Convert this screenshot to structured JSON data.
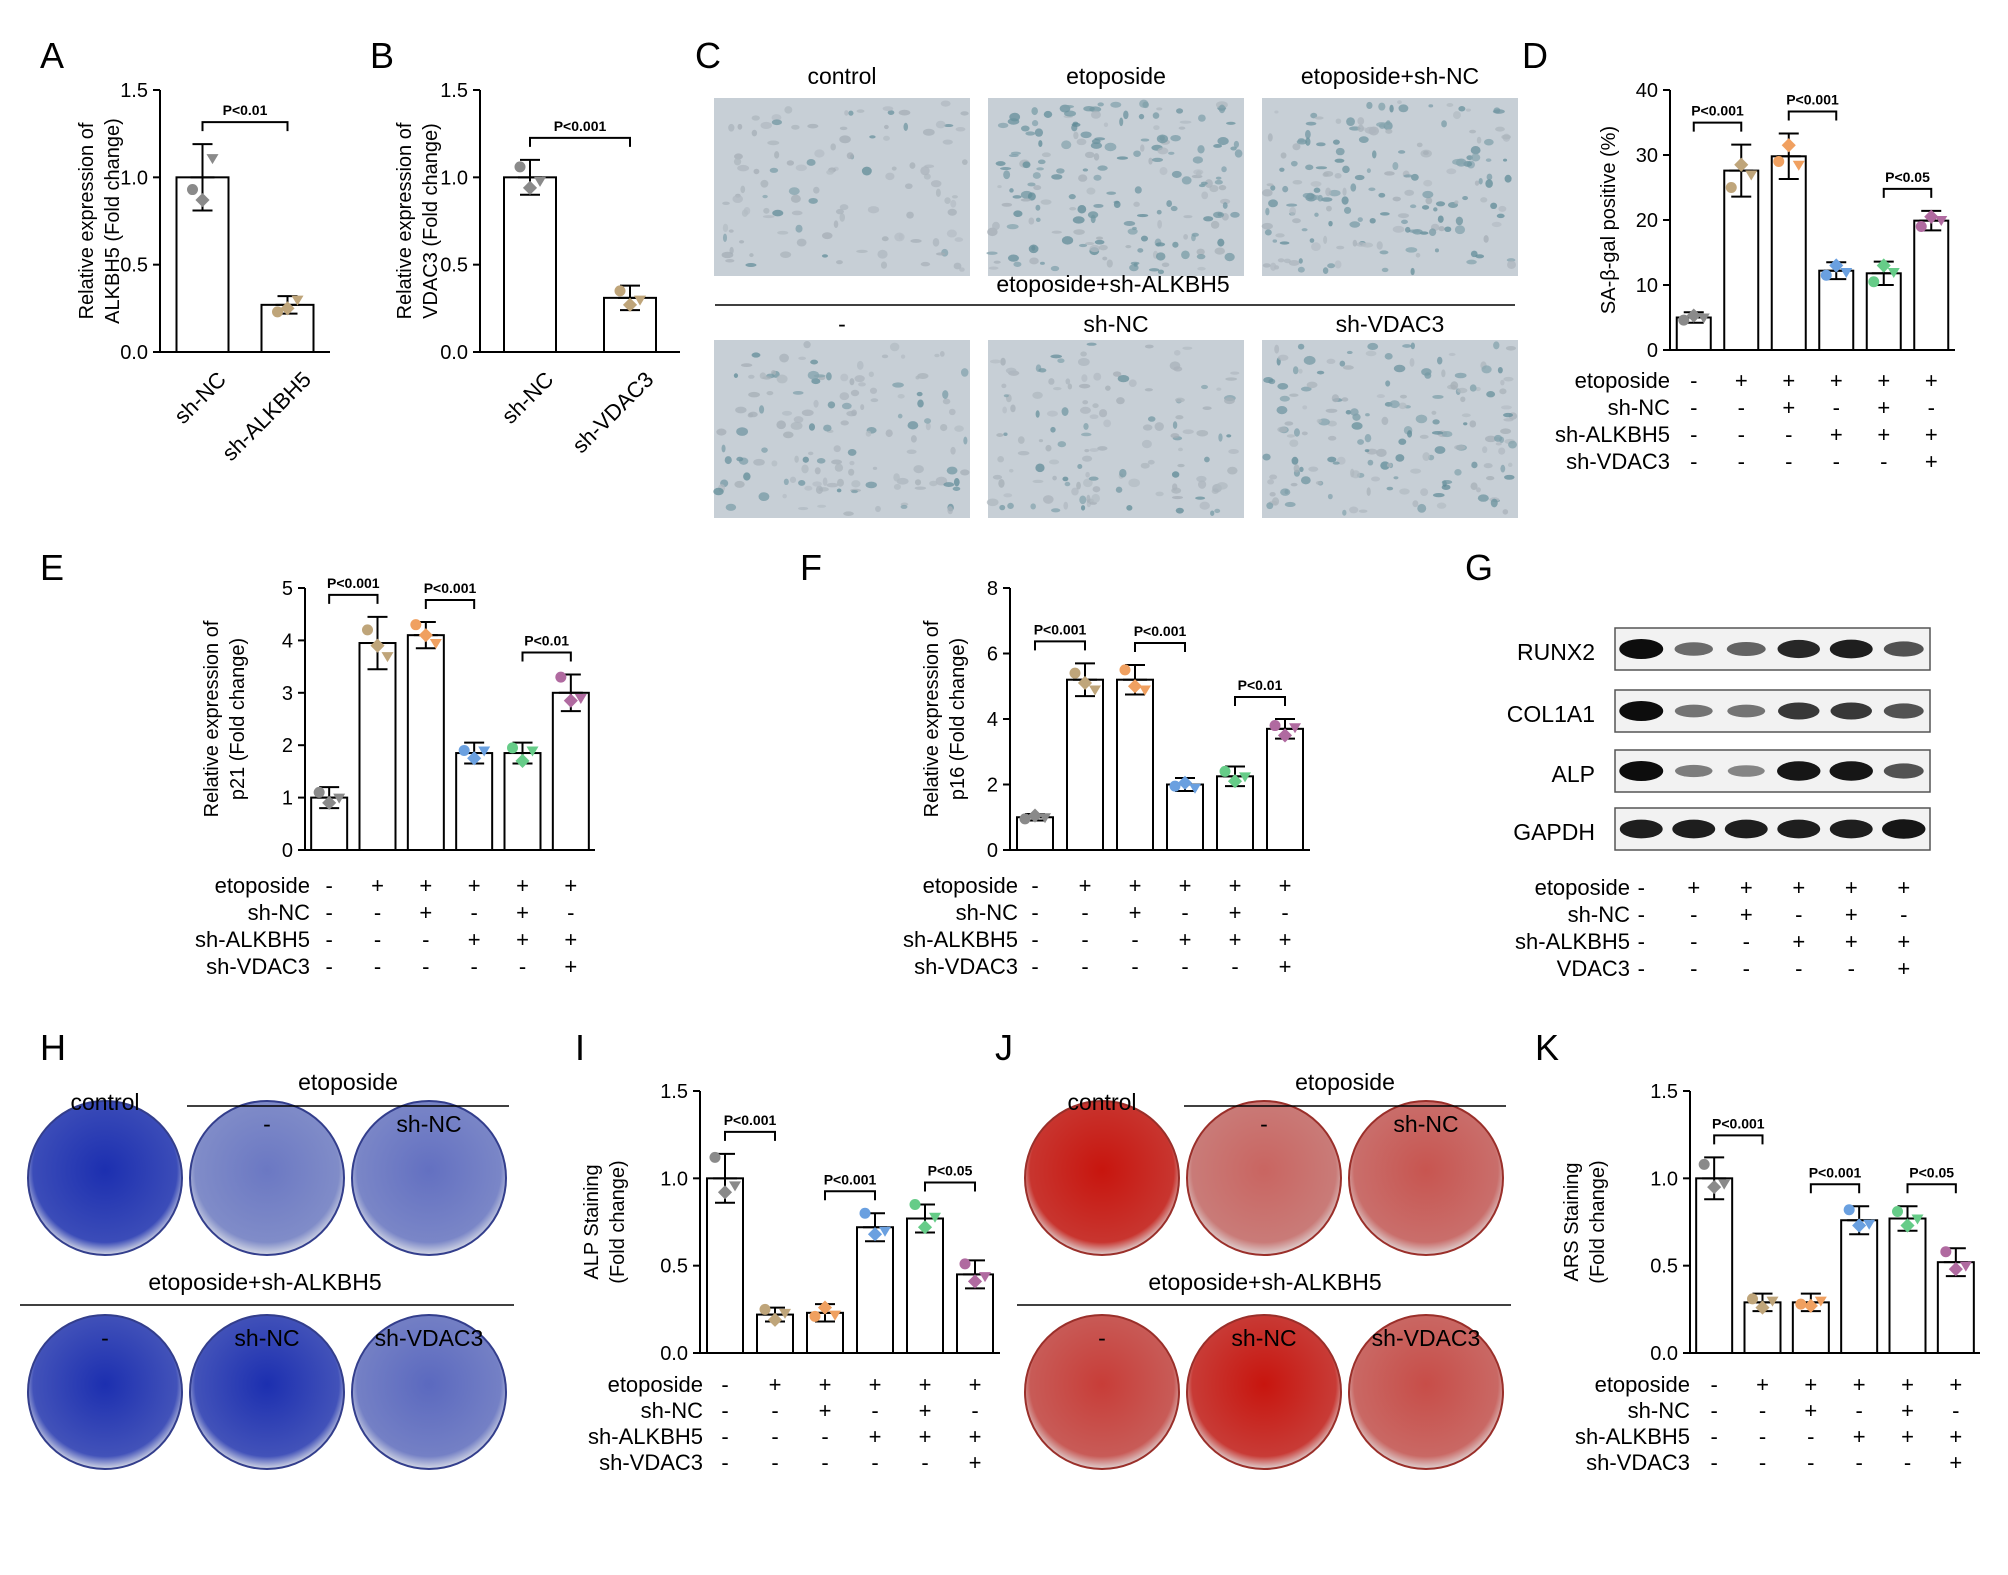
{
  "panel_letters": [
    "A",
    "B",
    "C",
    "D",
    "E",
    "F",
    "G",
    "H",
    "I",
    "J",
    "K"
  ],
  "chart_data": [
    {
      "panel": "A",
      "type": "bar",
      "categories": [
        "sh-NC",
        "sh-ALKBH5"
      ],
      "values": [
        1.0,
        0.27
      ],
      "errors": [
        0.19,
        0.05
      ],
      "points": [
        [
          0.93,
          0.87,
          1.11
        ],
        [
          0.23,
          0.25,
          0.3
        ]
      ],
      "point_colors": [
        "#8a8a8a",
        "#bfa57a"
      ],
      "ylabel": [
        "Relative expression of",
        "ALKBH5 (Fold change)"
      ],
      "ylim": [
        0,
        1.5
      ],
      "yticks": [
        "0.0",
        "0.5",
        "1.0",
        "1.5"
      ],
      "comparisons": [
        {
          "from": 0,
          "to": 1,
          "label": "P<0.01"
        }
      ]
    },
    {
      "panel": "B",
      "type": "bar",
      "categories": [
        "sh-NC",
        "sh-VDAC3"
      ],
      "values": [
        1.0,
        0.31
      ],
      "errors": [
        0.1,
        0.07
      ],
      "points": [
        [
          1.06,
          0.94,
          0.98
        ],
        [
          0.35,
          0.27,
          0.3
        ]
      ],
      "point_colors": [
        "#8a8a8a",
        "#bfa57a"
      ],
      "ylabel": [
        "Relative expression of",
        "VDAC3 (Fold change)"
      ],
      "ylim": [
        0,
        1.5
      ],
      "yticks": [
        "0.0",
        "0.5",
        "1.0",
        "1.5"
      ],
      "comparisons": [
        {
          "from": 0,
          "to": 1,
          "label": "P<0.001"
        }
      ]
    },
    {
      "panel": "D",
      "type": "bar",
      "values": [
        5.0,
        27.6,
        29.8,
        12.2,
        11.8,
        19.9
      ],
      "errors": [
        0.8,
        4.0,
        3.5,
        1.3,
        1.8,
        1.5
      ],
      "points": [
        [
          4.6,
          5.3,
          5.0
        ],
        [
          25.0,
          28.5,
          27.0
        ],
        [
          29.0,
          31.5,
          28.5
        ],
        [
          11.5,
          13.0,
          12.0
        ],
        [
          10.5,
          13.0,
          12.0
        ],
        [
          19.0,
          20.5,
          20.0
        ]
      ],
      "point_colors": [
        "#8a8a8a",
        "#bfa57a",
        "#f0a060",
        "#6aa0e0",
        "#66cc88",
        "#b06aa0"
      ],
      "ylabel": [
        "SA-β-gal positive (%)"
      ],
      "ylim": [
        0,
        40
      ],
      "yticks": [
        "0",
        "10",
        "20",
        "30",
        "40"
      ],
      "comparisons": [
        {
          "from": 0,
          "to": 1,
          "label": "P<0.001"
        },
        {
          "from": 2,
          "to": 3,
          "label": "P<0.001"
        },
        {
          "from": 4,
          "to": 5,
          "label": "P<0.05"
        }
      ],
      "conditions": [
        {
          "name": "etoposide",
          "signs": [
            "-",
            "+",
            "+",
            "+",
            "+",
            "+"
          ]
        },
        {
          "name": "sh-NC",
          "signs": [
            "-",
            "-",
            "+",
            "-",
            "+",
            "-"
          ]
        },
        {
          "name": "sh-ALKBH5",
          "signs": [
            "-",
            "-",
            "-",
            "+",
            "+",
            "+"
          ]
        },
        {
          "name": "sh-VDAC3",
          "signs": [
            "-",
            "-",
            "-",
            "-",
            "-",
            "+"
          ]
        }
      ]
    },
    {
      "panel": "E",
      "type": "bar",
      "values": [
        1.0,
        3.95,
        4.1,
        1.85,
        1.85,
        3.0
      ],
      "errors": [
        0.2,
        0.5,
        0.25,
        0.2,
        0.2,
        0.35
      ],
      "points": [
        [
          1.1,
          0.9,
          1.0
        ],
        [
          4.2,
          3.9,
          3.7
        ],
        [
          4.3,
          4.1,
          3.95
        ],
        [
          1.9,
          1.75,
          1.9
        ],
        [
          1.95,
          1.7,
          1.9
        ],
        [
          3.3,
          2.85,
          2.9
        ]
      ],
      "point_colors": [
        "#8a8a8a",
        "#bfa57a",
        "#f0a060",
        "#6aa0e0",
        "#66cc88",
        "#b06aa0"
      ],
      "ylabel": [
        "Relative expression of",
        "p21 (Fold change)"
      ],
      "ylim": [
        0,
        5
      ],
      "yticks": [
        "0",
        "1",
        "2",
        "3",
        "4",
        "5"
      ],
      "comparisons": [
        {
          "from": 0,
          "to": 1,
          "label": "P<0.001"
        },
        {
          "from": 2,
          "to": 3,
          "label": "P<0.001"
        },
        {
          "from": 4,
          "to": 5,
          "label": "P<0.01"
        }
      ],
      "conditions": [
        {
          "name": "etoposide",
          "signs": [
            "-",
            "+",
            "+",
            "+",
            "+",
            "+"
          ]
        },
        {
          "name": "sh-NC",
          "signs": [
            "-",
            "-",
            "+",
            "-",
            "+",
            "-"
          ]
        },
        {
          "name": "sh-ALKBH5",
          "signs": [
            "-",
            "-",
            "-",
            "+",
            "+",
            "+"
          ]
        },
        {
          "name": "sh-VDAC3",
          "signs": [
            "-",
            "-",
            "-",
            "-",
            "-",
            "+"
          ]
        }
      ]
    },
    {
      "panel": "F",
      "type": "bar",
      "values": [
        1.0,
        5.2,
        5.2,
        2.0,
        2.25,
        3.7
      ],
      "errors": [
        0.1,
        0.5,
        0.45,
        0.2,
        0.3,
        0.3
      ],
      "points": [
        [
          0.95,
          1.05,
          1.0
        ],
        [
          5.4,
          5.1,
          4.9
        ],
        [
          5.5,
          5.0,
          4.9
        ],
        [
          1.95,
          2.05,
          1.9
        ],
        [
          2.4,
          2.1,
          2.25
        ],
        [
          3.8,
          3.5,
          3.75
        ]
      ],
      "point_colors": [
        "#8a8a8a",
        "#bfa57a",
        "#f0a060",
        "#6aa0e0",
        "#66cc88",
        "#b06aa0"
      ],
      "ylabel": [
        "Relative expression of",
        "p16 (Fold change)"
      ],
      "ylim": [
        0,
        8
      ],
      "yticks": [
        "0",
        "2",
        "4",
        "6",
        "8"
      ],
      "comparisons": [
        {
          "from": 0,
          "to": 1,
          "label": "P<0.001"
        },
        {
          "from": 2,
          "to": 3,
          "label": "P<0.001"
        },
        {
          "from": 4,
          "to": 5,
          "label": "P<0.01"
        }
      ],
      "conditions": [
        {
          "name": "etoposide",
          "signs": [
            "-",
            "+",
            "+",
            "+",
            "+",
            "+"
          ]
        },
        {
          "name": "sh-NC",
          "signs": [
            "-",
            "-",
            "+",
            "-",
            "+",
            "-"
          ]
        },
        {
          "name": "sh-ALKBH5",
          "signs": [
            "-",
            "-",
            "-",
            "+",
            "+",
            "+"
          ]
        },
        {
          "name": "sh-VDAC3",
          "signs": [
            "-",
            "-",
            "-",
            "-",
            "-",
            "+"
          ]
        }
      ]
    },
    {
      "panel": "I",
      "type": "bar",
      "values": [
        1.0,
        0.22,
        0.23,
        0.72,
        0.77,
        0.45
      ],
      "errors": [
        0.14,
        0.04,
        0.05,
        0.08,
        0.08,
        0.08
      ],
      "points": [
        [
          1.12,
          0.92,
          0.96
        ],
        [
          0.25,
          0.19,
          0.23
        ],
        [
          0.21,
          0.26,
          0.22
        ],
        [
          0.8,
          0.68,
          0.7
        ],
        [
          0.85,
          0.72,
          0.78
        ],
        [
          0.51,
          0.41,
          0.44
        ]
      ],
      "point_colors": [
        "#8a8a8a",
        "#bfa57a",
        "#f0a060",
        "#6aa0e0",
        "#66cc88",
        "#b06aa0"
      ],
      "ylabel": [
        "ALP Staining",
        "(Fold change)"
      ],
      "ylim": [
        0,
        1.5
      ],
      "yticks": [
        "0.0",
        "0.5",
        "1.0",
        "1.5"
      ],
      "comparisons": [
        {
          "from": 0,
          "to": 1,
          "label": "P<0.001"
        },
        {
          "from": 2,
          "to": 3,
          "label": "P<0.001"
        },
        {
          "from": 4,
          "to": 5,
          "label": "P<0.05"
        }
      ],
      "conditions": [
        {
          "name": "etoposide",
          "signs": [
            "-",
            "+",
            "+",
            "+",
            "+",
            "+"
          ]
        },
        {
          "name": "sh-NC",
          "signs": [
            "-",
            "-",
            "+",
            "-",
            "+",
            "-"
          ]
        },
        {
          "name": "sh-ALKBH5",
          "signs": [
            "-",
            "-",
            "-",
            "+",
            "+",
            "+"
          ]
        },
        {
          "name": "sh-VDAC3",
          "signs": [
            "-",
            "-",
            "-",
            "-",
            "-",
            "+"
          ]
        }
      ]
    },
    {
      "panel": "K",
      "type": "bar",
      "values": [
        1.0,
        0.29,
        0.29,
        0.76,
        0.77,
        0.52
      ],
      "errors": [
        0.12,
        0.05,
        0.05,
        0.08,
        0.07,
        0.08
      ],
      "points": [
        [
          1.08,
          0.95,
          0.97
        ],
        [
          0.31,
          0.26,
          0.3
        ],
        [
          0.28,
          0.27,
          0.3
        ],
        [
          0.82,
          0.73,
          0.74
        ],
        [
          0.81,
          0.73,
          0.77
        ],
        [
          0.58,
          0.48,
          0.5
        ]
      ],
      "point_colors": [
        "#8a8a8a",
        "#bfa57a",
        "#f0a060",
        "#6aa0e0",
        "#66cc88",
        "#b06aa0"
      ],
      "ylabel": [
        "ARS Staining",
        "(Fold change)"
      ],
      "ylim": [
        0,
        1.5
      ],
      "yticks": [
        "0.0",
        "0.5",
        "1.0",
        "1.5"
      ],
      "comparisons": [
        {
          "from": 0,
          "to": 1,
          "label": "P<0.001"
        },
        {
          "from": 2,
          "to": 3,
          "label": "P<0.001"
        },
        {
          "from": 4,
          "to": 5,
          "label": "P<0.05"
        }
      ],
      "conditions": [
        {
          "name": "etoposide",
          "signs": [
            "-",
            "+",
            "+",
            "+",
            "+",
            "+"
          ]
        },
        {
          "name": "sh-NC",
          "signs": [
            "-",
            "-",
            "+",
            "-",
            "+",
            "-"
          ]
        },
        {
          "name": "sh-ALKBH5",
          "signs": [
            "-",
            "-",
            "-",
            "+",
            "+",
            "+"
          ]
        },
        {
          "name": "sh-VDAC3",
          "signs": [
            "-",
            "-",
            "-",
            "-",
            "-",
            "+"
          ]
        }
      ]
    }
  ],
  "panel_c": {
    "top_labels": [
      "control",
      "etoposide",
      "etoposide+sh-NC"
    ],
    "group_label": "etoposide+sh-ALKBH5",
    "bottom_labels": [
      "-",
      "sh-NC",
      "sh-VDAC3"
    ],
    "stain_levels": [
      0.15,
      0.65,
      0.6,
      0.35,
      0.3,
      0.55
    ],
    "tile_color": "#c7cfd6",
    "stain_color": "#5e8a96"
  },
  "panel_g": {
    "proteins": [
      "RUNX2",
      "COL1A1",
      "ALP",
      "GAPDH"
    ],
    "band_intensity": [
      [
        1.0,
        0.45,
        0.5,
        0.85,
        0.9,
        0.6
      ],
      [
        1.0,
        0.4,
        0.4,
        0.75,
        0.75,
        0.6
      ],
      [
        1.0,
        0.35,
        0.3,
        0.95,
        0.95,
        0.6
      ],
      [
        0.9,
        0.9,
        0.9,
        0.9,
        0.9,
        0.95
      ]
    ],
    "conditions": [
      {
        "name": "etoposide",
        "signs": [
          "-",
          "+",
          "+",
          "+",
          "+",
          "+"
        ]
      },
      {
        "name": "sh-NC",
        "signs": [
          "-",
          "-",
          "+",
          "-",
          "+",
          "-"
        ]
      },
      {
        "name": "sh-ALKBH5",
        "signs": [
          "-",
          "-",
          "-",
          "+",
          "+",
          "+"
        ]
      },
      {
        "name": "VDAC3",
        "signs": [
          "-",
          "-",
          "-",
          "-",
          "-",
          "+"
        ]
      }
    ]
  },
  "panel_h": {
    "top_first": "control",
    "group_top": "etoposide",
    "top_sub": [
      "-",
      "sh-NC"
    ],
    "group_bottom": "etoposide+sh-ALKBH5",
    "bottom_sub": [
      "-",
      "sh-NC",
      "sh-VDAC3"
    ],
    "intensity": [
      1.0,
      0.45,
      0.5,
      0.95,
      0.95,
      0.55
    ],
    "colors": {
      "strong": "#1c2fb0",
      "weak": "#b9c0d6"
    }
  },
  "panel_j": {
    "top_first": "control",
    "group_top": "etoposide",
    "top_sub": [
      "-",
      "sh-NC"
    ],
    "group_bottom": "etoposide+sh-ALKBH5",
    "bottom_sub": [
      "-",
      "sh-NC",
      "sh-VDAC3"
    ],
    "intensity": [
      1.0,
      0.45,
      0.55,
      0.7,
      0.95,
      0.6
    ],
    "colors": {
      "strong": "#c8150e",
      "weak": "#c9b4b4"
    }
  }
}
